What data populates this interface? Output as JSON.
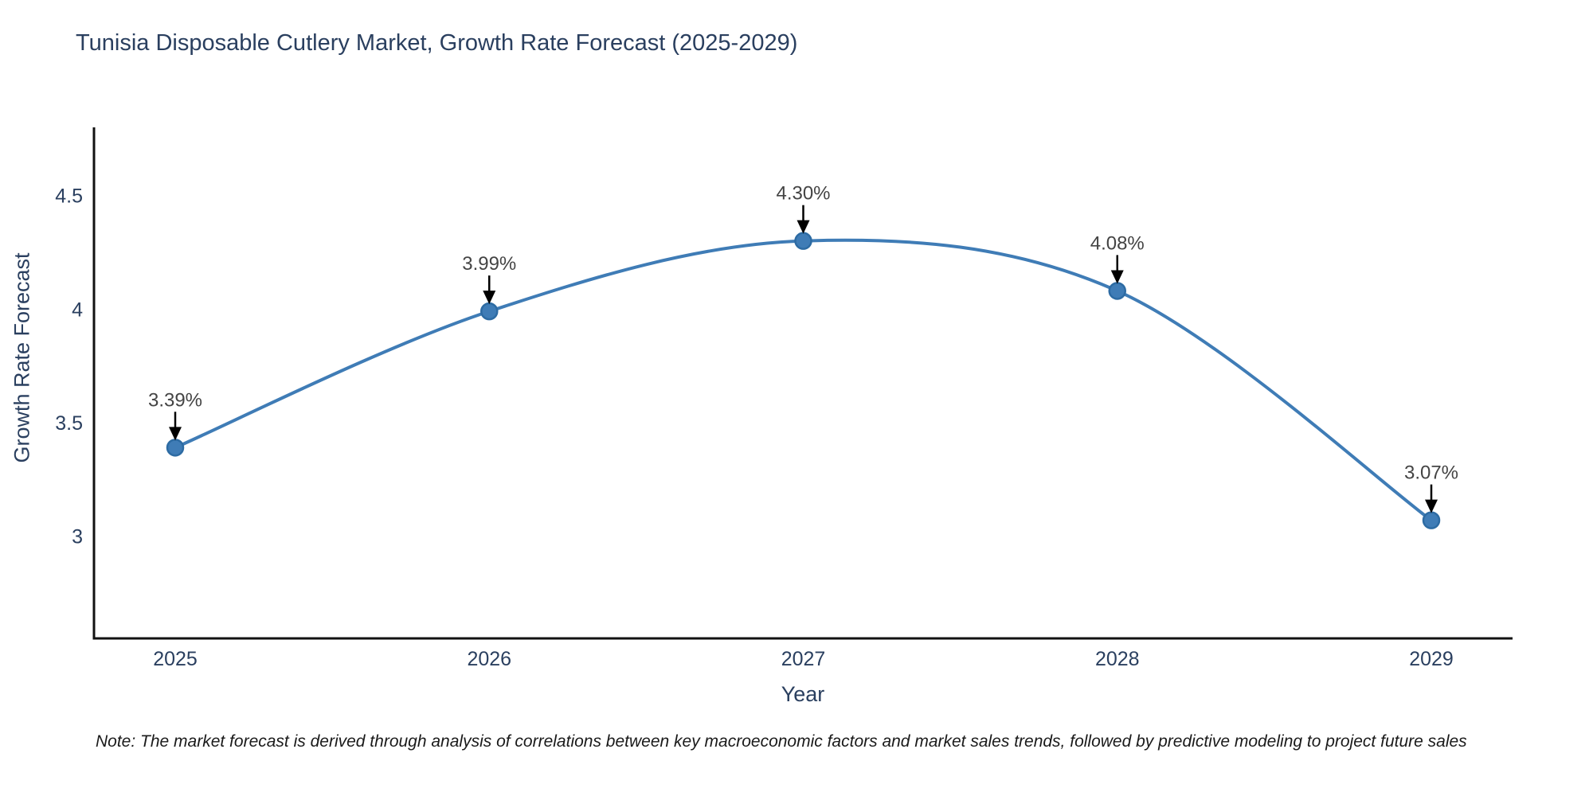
{
  "chart_data": {
    "type": "line",
    "title": "Tunisia Disposable Cutlery Market, Growth Rate Forecast (2025-2029)",
    "xlabel": "Year",
    "ylabel": "Growth Rate Forecast",
    "categories": [
      "2025",
      "2026",
      "2027",
      "2028",
      "2029"
    ],
    "series": [
      {
        "name": "Growth Rate Forecast",
        "values": [
          3.39,
          3.99,
          4.3,
          4.08,
          3.07
        ]
      }
    ],
    "point_labels": [
      "3.39%",
      "3.99%",
      "4.30%",
      "4.08%",
      "3.07%"
    ],
    "yticks": [
      3,
      3.5,
      4,
      4.5
    ],
    "ylim": [
      2.55,
      4.8
    ],
    "line_shape": "spline",
    "grid": false,
    "legend_position": "none",
    "colors": {
      "line": "#3f7cb6",
      "marker_fill": "#3f7cb6",
      "marker_edge": "#2d6ba3",
      "annotation_arrow": "#000000",
      "axis_line": "#111111",
      "title_text": "#2a3f5f",
      "annotation_text": "#444444"
    }
  },
  "footnote": {
    "text": "Note: The market forecast is derived through analysis of correlations between key macroeconomic factors and market sales trends, followed by predictive modeling to project future sales"
  }
}
